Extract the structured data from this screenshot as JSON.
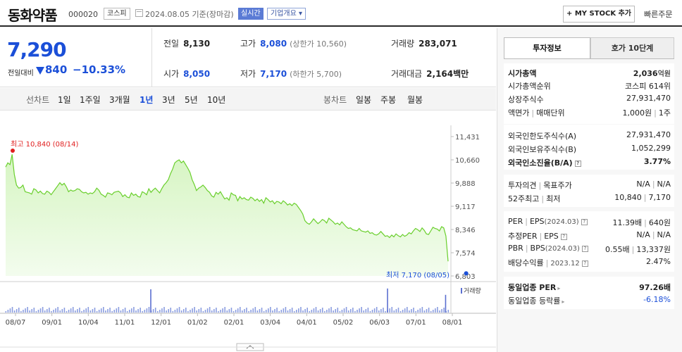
{
  "header": {
    "name": "동화약품",
    "code": "000020",
    "market": "코스피",
    "date": "2024.08.05  기준(장마감)",
    "realtime": "실시간",
    "overview": "기업개요 ▾",
    "mystock": "+ MY STOCK 추가",
    "quick_order": "빠른주문"
  },
  "price": {
    "current": "7,290",
    "compare_label": "전일대비",
    "change": "840",
    "change_pct": "−10.33%",
    "prev_label": "전일",
    "prev": "8,130",
    "open_label": "시가",
    "open": "8,050",
    "high_label": "고가",
    "high": "8,080",
    "upper_limit": "(상한가 10,560)",
    "low_label": "저가",
    "low": "7,170",
    "lower_limit": "(하한가 5,700)",
    "volume_label": "거래량",
    "volume": "283,071",
    "amount_label": "거래대금",
    "amount": "2,164",
    "amount_unit": "백만"
  },
  "periods": {
    "line_label": "선차트",
    "items": [
      "1일",
      "1주일",
      "3개월",
      "1년",
      "3년",
      "5년",
      "10년"
    ],
    "active": "1년",
    "candle_label": "봉차트",
    "candle_items": [
      "일봉",
      "주봉",
      "월봉"
    ]
  },
  "chart_data": {
    "type": "area",
    "y_ticks": [
      "11,431",
      "10,660",
      "9,888",
      "9,117",
      "8,346",
      "7,574",
      "6,803"
    ],
    "ylim": [
      6803,
      11431
    ],
    "x_ticks": [
      "08/07",
      "09/01",
      "10/04",
      "11/01",
      "12/01",
      "01/02",
      "02/01",
      "03/04",
      "04/01",
      "05/02",
      "06/03",
      "07/01",
      "08/01"
    ],
    "max_label": "최고 10,840 (08/14)",
    "min_label": "최저 7,170 (08/05)",
    "volume_label": "거래량",
    "series": [
      {
        "values": [
          10420,
          10560,
          10500,
          10840,
          10180,
          9820,
          9720,
          9740,
          9820,
          9600,
          9580,
          9560,
          9520,
          9700,
          9660,
          9560,
          9620,
          9540,
          9520,
          9620,
          9580,
          9500,
          9600,
          9700,
          9800,
          9900,
          9820,
          9880,
          9760,
          9600,
          9660,
          9620,
          9640,
          9700,
          9680,
          9600,
          9560,
          9580,
          9520,
          9560,
          9540,
          9600,
          9720,
          9650,
          9520,
          9480,
          9420,
          9560,
          9540,
          9500,
          9580,
          9600,
          9620,
          9560,
          9440,
          9500,
          9420,
          9400,
          9560,
          9480,
          9520,
          9440,
          9420,
          9600,
          9560,
          9500,
          9700,
          9580,
          9660,
          9720,
          9640,
          9560,
          9700,
          9820,
          9900,
          10000,
          10200,
          10350,
          10560,
          10620,
          10660,
          10560,
          10620,
          10500,
          10380,
          10240,
          10000,
          9840,
          9640,
          9720,
          9760,
          9820,
          9740,
          9640,
          9580,
          9460,
          9420,
          9580,
          9520,
          9600,
          9480,
          9360,
          9400,
          9320,
          9560,
          9500,
          9480,
          9300,
          9440,
          9360,
          9400,
          9340,
          9320,
          9420,
          9380,
          9300,
          9360,
          9280,
          9340,
          9220,
          9400,
          9340,
          9260,
          9300,
          9200,
          9280,
          9260,
          9200,
          9300,
          9240,
          9160,
          9200,
          9140,
          9220,
          9180,
          9080,
          8980,
          8860,
          8640,
          8560,
          8520,
          8600,
          8700,
          8620,
          8540,
          8600,
          8680,
          8640,
          8560,
          8720,
          8660,
          8600,
          8520,
          8560,
          8500,
          8600,
          8520,
          8440,
          8380,
          8400,
          8340,
          8320,
          8300,
          8380,
          8300,
          8280,
          8260,
          8300,
          8220,
          8240,
          8180,
          8160,
          8200,
          8280,
          8200,
          8120,
          8140,
          8080,
          8160,
          8100,
          8200,
          8140,
          8100,
          8180,
          8120,
          8160,
          8240,
          8200,
          8300,
          8380,
          8340,
          8280,
          8400,
          8320,
          8200,
          8180,
          8300,
          8420,
          8380,
          8360,
          8300,
          8440,
          8400,
          8130,
          7290
        ]
      }
    ],
    "volume_spikes": [
      [
        0.33,
        0.92
      ],
      [
        0.86,
        0.95
      ],
      [
        0.99,
        0.7
      ]
    ],
    "max_index": 3,
    "min_index": 212
  },
  "side": {
    "tab_info": "투자정보",
    "tab_quote": "호가 10단계",
    "market_cap_label": "시가총액",
    "market_cap": "2,036",
    "market_cap_unit": "억원",
    "cap_rank_label": "시가총액순위",
    "cap_rank": "코스피 614위",
    "shares_label": "상장주식수",
    "shares": "27,931,470",
    "par_label": "액면가",
    "trade_unit_label": "매매단위",
    "par": "1,000원",
    "trade_unit": "1주",
    "foreign_limit_label": "외국인한도주식수(A)",
    "foreign_limit": "27,931,470",
    "foreign_hold_label": "외국인보유주식수(B)",
    "foreign_hold": "1,052,299",
    "foreign_ratio_label": "외국인소진율(B/A)",
    "foreign_ratio": "3.77%",
    "opinion_label": "투자의견",
    "target_label": "목표주가",
    "opinion": "N/A",
    "target": "N/A",
    "w52_high_label": "52주최고",
    "w52_low_label": "최저",
    "w52_high": "10,840",
    "w52_low": "7,170",
    "per_label": "PER",
    "eps_label": "EPS",
    "per_date": "(2024.03)",
    "per": "11.39배",
    "eps": "640원",
    "est_per_label": "추정PER",
    "est_eps_label": "EPS",
    "est_per": "N/A",
    "est_eps": "N/A",
    "pbr_label": "PBR",
    "bps_label": "BPS",
    "pbr_date": "(2024.03)",
    "pbr": "0.55배",
    "bps": "13,337원",
    "div_label": "배당수익률",
    "div_date": "2023.12",
    "div": "2.47%",
    "sector_per_label": "동일업종 PER",
    "sector_per": "97.26배",
    "sector_rate_label": "동일업종 등락률",
    "sector_rate": "-6.18%"
  }
}
